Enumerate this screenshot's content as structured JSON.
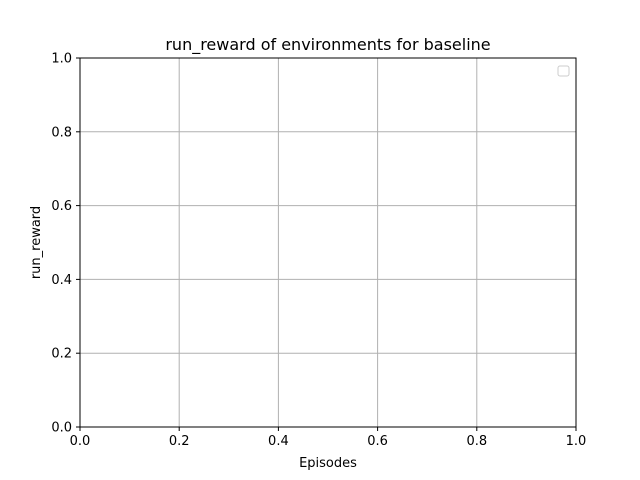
{
  "chart_data": {
    "type": "line",
    "title": "run_reward of environments for baseline",
    "xlabel": "Episodes",
    "ylabel": "run_reward",
    "xlim": [
      0.0,
      1.0
    ],
    "ylim": [
      0.0,
      1.0
    ],
    "xticks": [
      "0.0",
      "0.2",
      "0.4",
      "0.6",
      "0.8",
      "1.0"
    ],
    "yticks": [
      "0.0",
      "0.2",
      "0.4",
      "0.6",
      "0.8",
      "1.0"
    ],
    "grid": true,
    "legend": {
      "placement": "top-right",
      "entries": []
    },
    "series": []
  },
  "colors": {
    "grid": "#b0b0b0",
    "axis": "#000000",
    "legend_border": "#cccccc"
  }
}
